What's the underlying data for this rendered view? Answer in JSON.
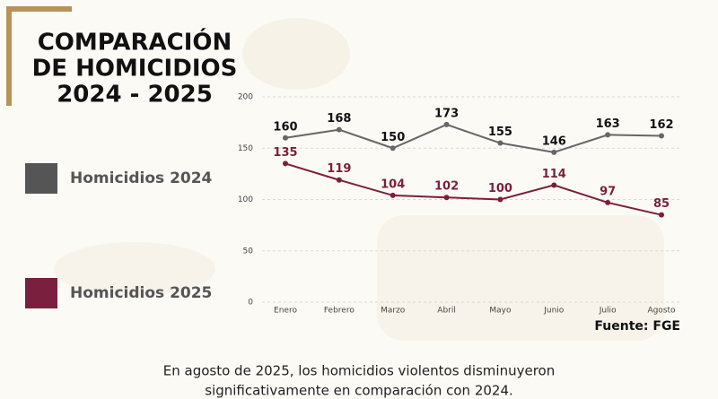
{
  "chart_data": {
    "type": "line",
    "title": [
      "COMPARACIÓN",
      "DE HOMICIDIOS",
      "2024 - 2025"
    ],
    "categories": [
      "Enero",
      "Febrero",
      "Marzo",
      "Abril",
      "Mayo",
      "Junio",
      "Julio",
      "Agosto"
    ],
    "series": [
      {
        "name": "Homicidios 2024",
        "color": "#666666",
        "label_color": "#111111",
        "values": [
          160,
          168,
          150,
          173,
          155,
          146,
          163,
          162
        ]
      },
      {
        "name": "Homicidios 2025",
        "color": "#7a1f3d",
        "label_color": "#7a1f3d",
        "values": [
          135,
          119,
          104,
          102,
          100,
          114,
          97,
          85
        ]
      }
    ],
    "ylim": [
      0,
      200
    ],
    "yticks": [
      0,
      50,
      100,
      150,
      200
    ],
    "grid": true,
    "legend": "left",
    "source": "Fuente: FGE",
    "note": [
      "En agosto de 2025, los homicidios violentos disminuyeron",
      "significativamente en comparación con 2024."
    ]
  }
}
